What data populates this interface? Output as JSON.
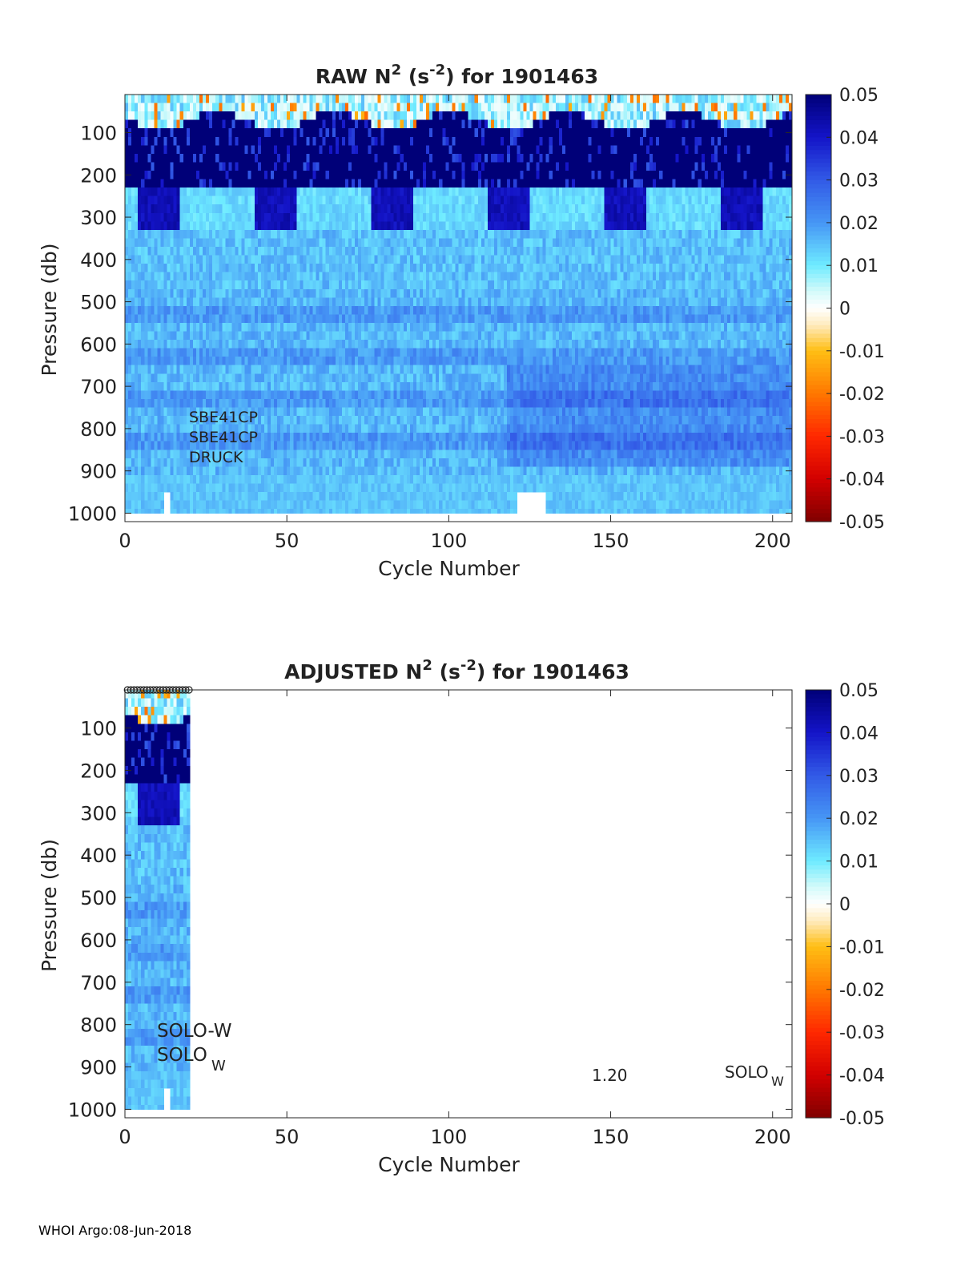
{
  "chart_data": [
    {
      "type": "heatmap",
      "title_main": "RAW N",
      "title_sup1": "2",
      "title_units_open": " (s",
      "title_sup2": "-2",
      "title_units_close": ") for 1901463",
      "xlabel": "Cycle Number",
      "ylabel": "Pressure (db)",
      "xlim": [
        0,
        206
      ],
      "ylim": [
        1020,
        10
      ],
      "xticks": [
        0,
        50,
        100,
        150,
        200
      ],
      "xtick_labels": [
        "0",
        "50",
        "100",
        "150",
        "200"
      ],
      "yticks": [
        100,
        200,
        300,
        400,
        500,
        600,
        700,
        800,
        900,
        1000
      ],
      "ytick_labels": [
        "100",
        "200",
        "300",
        "400",
        "500",
        "600",
        "700",
        "800",
        "900",
        "1000"
      ],
      "data_cycles": [
        1,
        206
      ],
      "colorbar": {
        "range": [
          -0.05,
          0.05
        ],
        "ticks": [
          0.05,
          0.04,
          0.03,
          0.02,
          0.01,
          0,
          -0.01,
          -0.02,
          -0.03,
          -0.04,
          -0.05
        ],
        "tick_labels": [
          "0.05",
          "0.04",
          "0.03",
          "0.02",
          "0.01",
          "0",
          "-0.01",
          "-0.02",
          "-0.03",
          "-0.04",
          "-0.05"
        ]
      },
      "annotations": [
        "SBE41CP",
        "SBE41CP",
        "DRUCK"
      ]
    },
    {
      "type": "heatmap",
      "title_main": "ADJUSTED N",
      "title_sup1": "2",
      "title_units_open": " (s",
      "title_sup2": "-2",
      "title_units_close": ") for 1901463",
      "xlabel": "Cycle Number",
      "ylabel": "Pressure (db)",
      "xlim": [
        0,
        206
      ],
      "ylim": [
        1020,
        10
      ],
      "xticks": [
        0,
        50,
        100,
        150,
        200
      ],
      "xtick_labels": [
        "0",
        "50",
        "100",
        "150",
        "200"
      ],
      "yticks": [
        100,
        200,
        300,
        400,
        500,
        600,
        700,
        800,
        900,
        1000
      ],
      "ytick_labels": [
        "100",
        "200",
        "300",
        "400",
        "500",
        "600",
        "700",
        "800",
        "900",
        "1000"
      ],
      "data_cycles": [
        1,
        20
      ],
      "marker_cycles": [
        1,
        2,
        3,
        4,
        5,
        6,
        7,
        8,
        9,
        10,
        11,
        12,
        13,
        14,
        15,
        16,
        17,
        18,
        19,
        20
      ],
      "colorbar": {
        "range": [
          -0.05,
          0.05
        ],
        "ticks": [
          0.05,
          0.04,
          0.03,
          0.02,
          0.01,
          0,
          -0.01,
          -0.02,
          -0.03,
          -0.04,
          -0.05
        ],
        "tick_labels": [
          "0.05",
          "0.04",
          "0.03",
          "0.02",
          "0.01",
          "0",
          "-0.01",
          "-0.02",
          "-0.03",
          "-0.04",
          "-0.05"
        ]
      },
      "annotations": [
        "SOLO-W",
        "SOLO",
        "W",
        "1.20",
        "SOLO",
        "W"
      ]
    }
  ],
  "footer": "WHOI Argo:08-Jun-2018"
}
